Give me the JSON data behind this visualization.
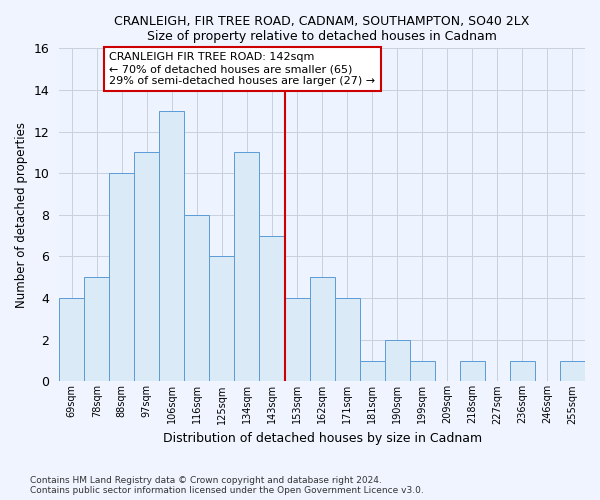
{
  "title1": "CRANLEIGH, FIR TREE ROAD, CADNAM, SOUTHAMPTON, SO40 2LX",
  "title2": "Size of property relative to detached houses in Cadnam",
  "xlabel": "Distribution of detached houses by size in Cadnam",
  "ylabel": "Number of detached properties",
  "categories": [
    "69sqm",
    "78sqm",
    "88sqm",
    "97sqm",
    "106sqm",
    "116sqm",
    "125sqm",
    "134sqm",
    "143sqm",
    "153sqm",
    "162sqm",
    "171sqm",
    "181sqm",
    "190sqm",
    "199sqm",
    "209sqm",
    "218sqm",
    "227sqm",
    "236sqm",
    "246sqm",
    "255sqm"
  ],
  "values": [
    4,
    5,
    10,
    11,
    13,
    8,
    6,
    11,
    7,
    4,
    5,
    4,
    1,
    2,
    1,
    0,
    1,
    0,
    1,
    0,
    1
  ],
  "bar_color": "#daeaf7",
  "bar_edge_color": "#5b9bd5",
  "vline_x": 8.5,
  "vline_color": "#cc0000",
  "annotation_text": "CRANLEIGH FIR TREE ROAD: 142sqm\n← 70% of detached houses are smaller (65)\n29% of semi-detached houses are larger (27) →",
  "annotation_box_color": "#ffffff",
  "annotation_box_edge": "#cc0000",
  "ylim": [
    0,
    16
  ],
  "yticks": [
    0,
    2,
    4,
    6,
    8,
    10,
    12,
    14,
    16
  ],
  "footer1": "Contains HM Land Registry data © Crown copyright and database right 2024.",
  "footer2": "Contains public sector information licensed under the Open Government Licence v3.0.",
  "bg_color": "#f0f4ff",
  "plot_bg_color": "#eef4ff",
  "grid_color": "#c8d0dc"
}
